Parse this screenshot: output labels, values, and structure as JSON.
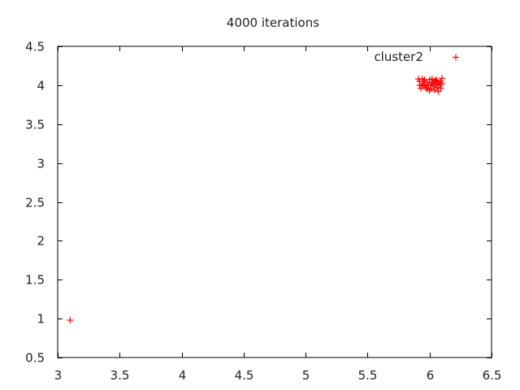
{
  "chart_data": {
    "type": "scatter",
    "title": "4000 iterations",
    "xlabel": "",
    "ylabel": "",
    "xlim": [
      3,
      6.5
    ],
    "ylim": [
      0.5,
      4.5
    ],
    "x_ticks": [
      "3",
      "3.5",
      "4",
      "4.5",
      "5",
      "5.5",
      "6",
      "6.5"
    ],
    "y_ticks": [
      "0.5",
      "1",
      "1.5",
      "2",
      "2.5",
      "3",
      "3.5",
      "4",
      "4.5"
    ],
    "grid": false,
    "legend": {
      "position": "top-right",
      "entries": [
        {
          "label": "cluster2",
          "color": "#ff0000",
          "marker": "plus"
        }
      ]
    },
    "series": [
      {
        "name": "cluster2",
        "color": "#ff0000",
        "marker": "plus",
        "points": [
          {
            "x": 3.1,
            "y": 0.98
          },
          {
            "x": 5.91,
            "y": 4.08
          },
          {
            "x": 5.92,
            "y": 4.05
          },
          {
            "x": 5.92,
            "y": 4.0
          },
          {
            "x": 5.93,
            "y": 3.96
          },
          {
            "x": 5.94,
            "y": 4.08
          },
          {
            "x": 5.94,
            "y": 4.02
          },
          {
            "x": 5.95,
            "y": 3.99
          },
          {
            "x": 5.95,
            "y": 4.05
          },
          {
            "x": 5.96,
            "y": 4.01
          },
          {
            "x": 5.97,
            "y": 3.97
          },
          {
            "x": 5.98,
            "y": 4.04
          },
          {
            "x": 5.99,
            "y": 4.0
          },
          {
            "x": 6.0,
            "y": 3.93
          },
          {
            "x": 6.0,
            "y": 4.07
          },
          {
            "x": 6.01,
            "y": 3.96
          },
          {
            "x": 6.02,
            "y": 4.02
          },
          {
            "x": 6.02,
            "y": 4.08
          },
          {
            "x": 6.03,
            "y": 3.99
          },
          {
            "x": 6.04,
            "y": 4.05
          },
          {
            "x": 6.04,
            "y": 3.94
          },
          {
            "x": 6.05,
            "y": 4.01
          },
          {
            "x": 6.05,
            "y": 4.07
          },
          {
            "x": 6.06,
            "y": 3.97
          },
          {
            "x": 6.07,
            "y": 4.03
          },
          {
            "x": 6.07,
            "y": 3.92
          },
          {
            "x": 6.08,
            "y": 4.0
          },
          {
            "x": 6.09,
            "y": 4.05
          },
          {
            "x": 6.09,
            "y": 3.96
          },
          {
            "x": 6.1,
            "y": 4.09
          },
          {
            "x": 6.1,
            "y": 4.02
          },
          {
            "x": 5.98,
            "y": 3.95
          },
          {
            "x": 6.03,
            "y": 4.04
          },
          {
            "x": 5.96,
            "y": 4.07
          },
          {
            "x": 6.06,
            "y": 4.06
          },
          {
            "x": 6.01,
            "y": 4.0
          }
        ]
      }
    ]
  }
}
